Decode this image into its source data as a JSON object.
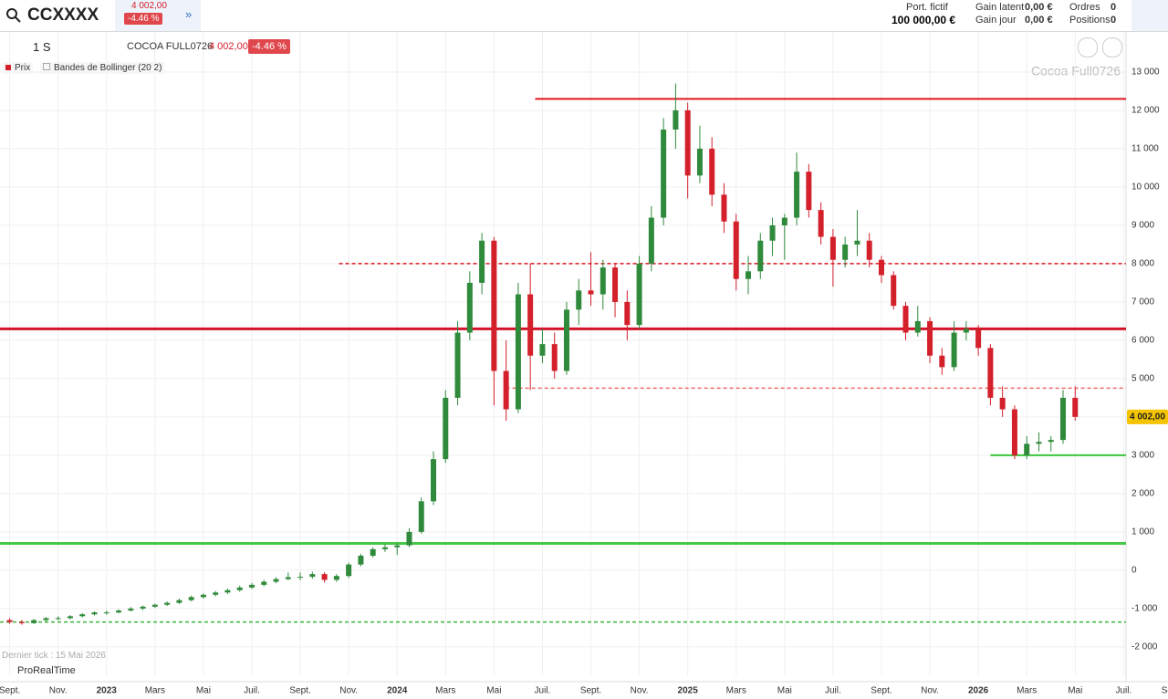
{
  "header": {
    "symbol": "CCXXXX",
    "price": "4 002,00",
    "change": "-4.46 %",
    "portfolio_label": "Port. fictif",
    "portfolio_value": "100 000,00 €",
    "gain_latent_label": "Gain latent",
    "gain_latent": "0,00 €",
    "gain_jour_label": "Gain jour",
    "gain_jour": "0,00 €",
    "orders_label": "Ordres",
    "orders": "0",
    "positions_label": "Positions",
    "positions": "0"
  },
  "toolbar": {
    "period": "1 S",
    "instrument": "COCOA FULL0726",
    "price": "4 002,00",
    "change": "-4.46 %",
    "legend_price": "Prix",
    "legend_indicator": "Bandes de Bollinger (20 2)"
  },
  "footer": {
    "last_tick": "Dernier tick : 15 Mai 2026",
    "brand": "ProRealTime"
  },
  "chart_data": {
    "type": "candlestick",
    "title": "Cocoa Full0726",
    "up_color": "#2f8a3c",
    "down_color": "#d3202b",
    "grid": true,
    "xlim": [
      -0.4,
      46.1
    ],
    "ylim": [
      -2740,
      14070
    ],
    "yticks": [
      {
        "value": 13000,
        "label": "13 000"
      },
      {
        "value": 12000,
        "label": "12 000"
      },
      {
        "value": 11000,
        "label": "11 000"
      },
      {
        "value": 10000,
        "label": "10 000"
      },
      {
        "value": 9000,
        "label": "9 000"
      },
      {
        "value": 8000,
        "label": "8 000"
      },
      {
        "value": 7000,
        "label": "7 000"
      },
      {
        "value": 6000,
        "label": "6 000"
      },
      {
        "value": 5000,
        "label": "5 000"
      },
      {
        "value": 4000,
        "label": "4 000"
      },
      {
        "value": 3000,
        "label": "3 000"
      },
      {
        "value": 2000,
        "label": "2 000"
      },
      {
        "value": 1000,
        "label": "1 000"
      },
      0,
      {
        "value": -1000,
        "label": "-1 000"
      },
      {
        "value": -2000,
        "label": "-2 000"
      }
    ],
    "xticks": [
      {
        "value": 0,
        "label": "Sept."
      },
      {
        "value": 2,
        "label": "Nov."
      },
      {
        "value": 4,
        "label": "2023"
      },
      {
        "value": 6,
        "label": "Mars"
      },
      {
        "value": 8,
        "label": "Mai"
      },
      {
        "value": 10,
        "label": "Juil."
      },
      {
        "value": 12,
        "label": "Sept."
      },
      {
        "value": 14,
        "label": "Nov."
      },
      {
        "value": 16,
        "label": "2024"
      },
      {
        "value": 18,
        "label": "Mars"
      },
      {
        "value": 20,
        "label": "Mai"
      },
      {
        "value": 22,
        "label": "Juil."
      },
      {
        "value": 24,
        "label": "Sept."
      },
      {
        "value": 26,
        "label": "Nov."
      },
      {
        "value": 28,
        "label": "2025"
      },
      {
        "value": 30,
        "label": "Mars"
      },
      {
        "value": 32,
        "label": "Mai"
      },
      {
        "value": 34,
        "label": "Juil."
      },
      {
        "value": 36,
        "label": "Sept."
      },
      {
        "value": 38,
        "label": "Nov."
      },
      {
        "value": 40,
        "label": "2026"
      },
      {
        "value": 42,
        "label": "Mars"
      },
      {
        "value": 44,
        "label": "Mai"
      },
      {
        "value": 46,
        "label": "Juil."
      },
      {
        "value": 48,
        "label": "Sept."
      }
    ],
    "x": [
      0,
      0.5,
      1,
      1.5,
      2,
      2.5,
      3,
      3.5,
      4,
      4.5,
      5,
      5.5,
      6,
      6.5,
      7,
      7.5,
      8,
      8.5,
      9,
      9.5,
      10,
      10.5,
      11,
      11.5,
      12,
      12.5,
      13,
      13.5,
      14,
      14.5,
      15,
      15.5,
      16,
      16.5,
      17,
      17.5,
      18,
      18.5,
      19,
      19.5,
      20,
      20.5,
      21,
      21.5,
      22,
      22.5,
      23,
      23.5,
      24,
      24.5,
      25,
      25.5,
      26,
      26.5,
      27,
      27.5,
      28,
      28.5,
      29,
      29.5,
      30,
      30.5,
      31,
      31.5,
      32,
      32.5,
      33,
      33.5,
      34,
      34.5,
      35,
      35.5,
      36,
      36.5,
      37,
      37.5,
      38,
      38.5,
      39,
      39.5,
      40,
      40.5,
      41,
      41.5,
      42,
      42.5,
      43,
      43.5,
      44
    ],
    "candles": [
      [
        -1300,
        -1250,
        -1400,
        -1350
      ],
      [
        -1350,
        -1300,
        -1420,
        -1380
      ],
      [
        -1380,
        -1270,
        -1400,
        -1300
      ],
      [
        -1300,
        -1220,
        -1330,
        -1250
      ],
      [
        -1250,
        -1200,
        -1300,
        -1250
      ],
      [
        -1250,
        -1170,
        -1280,
        -1200
      ],
      [
        -1200,
        -1120,
        -1230,
        -1150
      ],
      [
        -1150,
        -1070,
        -1180,
        -1100
      ],
      [
        -1100,
        -1050,
        -1160,
        -1100
      ],
      [
        -1100,
        -1020,
        -1130,
        -1050
      ],
      [
        -1050,
        -960,
        -1080,
        -1000
      ],
      [
        -1000,
        -920,
        -1040,
        -950
      ],
      [
        -950,
        -870,
        -980,
        -900
      ],
      [
        -900,
        -810,
        -930,
        -850
      ],
      [
        -850,
        -740,
        -880,
        -780
      ],
      [
        -780,
        -660,
        -810,
        -700
      ],
      [
        -700,
        -600,
        -740,
        -640
      ],
      [
        -640,
        -540,
        -680,
        -580
      ],
      [
        -580,
        -480,
        -620,
        -520
      ],
      [
        -520,
        -400,
        -560,
        -450
      ],
      [
        -450,
        -330,
        -490,
        -380
      ],
      [
        -380,
        -250,
        -420,
        -300
      ],
      [
        -300,
        -180,
        -340,
        -230
      ],
      [
        -230,
        -60,
        -260,
        -180
      ],
      [
        -180,
        -60,
        -260,
        -170
      ],
      [
        -170,
        -40,
        -220,
        -100
      ],
      [
        -100,
        -50,
        -320,
        -250
      ],
      [
        -250,
        -100,
        -300,
        -150
      ],
      [
        -150,
        200,
        -200,
        150
      ],
      [
        150,
        430,
        100,
        380
      ],
      [
        380,
        600,
        330,
        550
      ],
      [
        550,
        680,
        480,
        600
      ],
      [
        600,
        720,
        400,
        650
      ],
      [
        650,
        1100,
        600,
        1000
      ],
      [
        1000,
        1900,
        950,
        1800
      ],
      [
        1800,
        3100,
        1700,
        2900
      ],
      [
        2900,
        4700,
        2800,
        4500
      ],
      [
        4500,
        6500,
        4300,
        6200
      ],
      [
        6200,
        7800,
        6000,
        7500
      ],
      [
        7500,
        8800,
        7200,
        8600
      ],
      [
        8600,
        8700,
        4300,
        5200
      ],
      [
        5200,
        6000,
        3900,
        4200
      ],
      [
        4200,
        7500,
        4100,
        7200
      ],
      [
        7200,
        8000,
        4700,
        5600
      ],
      [
        5600,
        6300,
        5400,
        5900
      ],
      [
        5900,
        6200,
        5000,
        5200
      ],
      [
        5200,
        7000,
        5100,
        6800
      ],
      [
        6800,
        7600,
        6400,
        7300
      ],
      [
        7300,
        8300,
        6900,
        7200
      ],
      [
        7200,
        8100,
        6800,
        7900
      ],
      [
        7900,
        8000,
        6600,
        7000
      ],
      [
        7000,
        7300,
        6000,
        6400
      ],
      [
        6400,
        8200,
        6300,
        8000
      ],
      [
        8000,
        9500,
        7800,
        9200
      ],
      [
        9200,
        11800,
        9000,
        11500
      ],
      [
        11500,
        12700,
        11000,
        12000
      ],
      [
        12000,
        12200,
        9700,
        10300
      ],
      [
        10300,
        11600,
        10100,
        11000
      ],
      [
        11000,
        11300,
        9500,
        9800
      ],
      [
        9800,
        10100,
        8800,
        9100
      ],
      [
        9100,
        9300,
        7300,
        7600
      ],
      [
        7600,
        8200,
        7200,
        7800
      ],
      [
        7800,
        8800,
        7600,
        8600
      ],
      [
        8600,
        9200,
        8200,
        9000
      ],
      [
        9000,
        9300,
        8100,
        9200
      ],
      [
        9200,
        10900,
        9000,
        10400
      ],
      [
        10400,
        10600,
        9200,
        9400
      ],
      [
        9400,
        9600,
        8500,
        8700
      ],
      [
        8700,
        8900,
        7400,
        8100
      ],
      [
        8100,
        8700,
        7900,
        8500
      ],
      [
        8500,
        9400,
        8200,
        8600
      ],
      [
        8600,
        8800,
        7900,
        8100
      ],
      [
        8100,
        8200,
        7500,
        7700
      ],
      [
        7700,
        7800,
        6800,
        6900
      ],
      [
        6900,
        7000,
        6000,
        6200
      ],
      [
        6200,
        6900,
        6100,
        6500
      ],
      [
        6500,
        6600,
        5400,
        5600
      ],
      [
        5600,
        5800,
        5100,
        5300
      ],
      [
        5300,
        6500,
        5200,
        6200
      ],
      [
        6200,
        6500,
        6000,
        6300
      ],
      [
        6300,
        6400,
        5600,
        5800
      ],
      [
        5800,
        5900,
        4300,
        4500
      ],
      [
        4500,
        4800,
        4000,
        4200
      ],
      [
        4200,
        4300,
        2900,
        3000
      ],
      [
        3000,
        3500,
        2900,
        3300
      ],
      [
        3300,
        3600,
        3100,
        3350
      ],
      [
        3350,
        3500,
        3100,
        3400
      ],
      [
        3400,
        4700,
        3300,
        4500
      ],
      [
        4500,
        4800,
        3900,
        4002
      ]
    ],
    "levels": [
      {
        "value": 12300,
        "color": "#e0161e",
        "style": "solid",
        "from": 21.7
      },
      {
        "value": 8000,
        "color": "#e0161e",
        "style": "dashed",
        "from": 13.6
      },
      {
        "value": 6300,
        "color": "#d3132a",
        "style": "thick"
      },
      {
        "value": 4750,
        "color": "#ef6a6a",
        "style": "dashed",
        "from": 20.5
      },
      {
        "value": 3000,
        "color": "#3cc43c",
        "style": "solid",
        "from": 40.5
      },
      {
        "value": 700,
        "color": "#48c848",
        "style": "thick"
      },
      {
        "value": -1350,
        "color": "#3cb43c",
        "style": "dashed"
      }
    ],
    "last_price": {
      "value": 4002,
      "label": "4 002,00"
    }
  }
}
